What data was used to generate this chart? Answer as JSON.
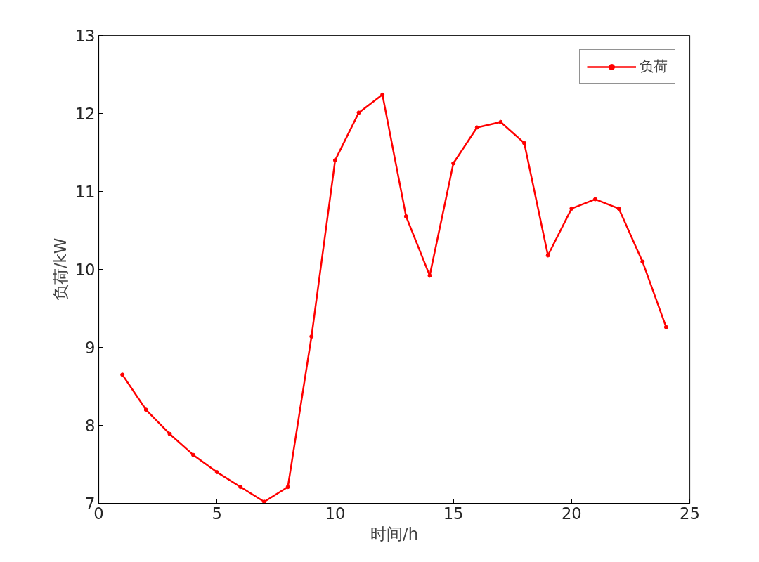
{
  "chart_data": {
    "type": "line",
    "xlabel": "时间/h",
    "ylabel": "负荷/kW",
    "x": [
      1,
      2,
      3,
      4,
      5,
      6,
      7,
      8,
      9,
      10,
      11,
      12,
      13,
      14,
      15,
      16,
      17,
      18,
      19,
      20,
      21,
      22,
      23,
      24
    ],
    "series": [
      {
        "name": "负荷",
        "color": "#ff0000",
        "values": [
          8.65,
          8.2,
          7.89,
          7.62,
          7.4,
          7.21,
          7.02,
          7.21,
          9.14,
          11.4,
          12.01,
          12.24,
          10.68,
          9.92,
          11.36,
          11.82,
          11.89,
          11.62,
          10.18,
          10.78,
          10.9,
          10.78,
          10.1,
          9.26
        ]
      }
    ],
    "xlim": [
      0,
      25
    ],
    "xticks": [
      0,
      5,
      10,
      15,
      20,
      25
    ],
    "ylim": [
      7,
      13
    ],
    "yticks": [
      7,
      8,
      9,
      10,
      11,
      12,
      13
    ],
    "legend": "top right",
    "marker": "circle",
    "line_style": "solid",
    "grid": false
  }
}
